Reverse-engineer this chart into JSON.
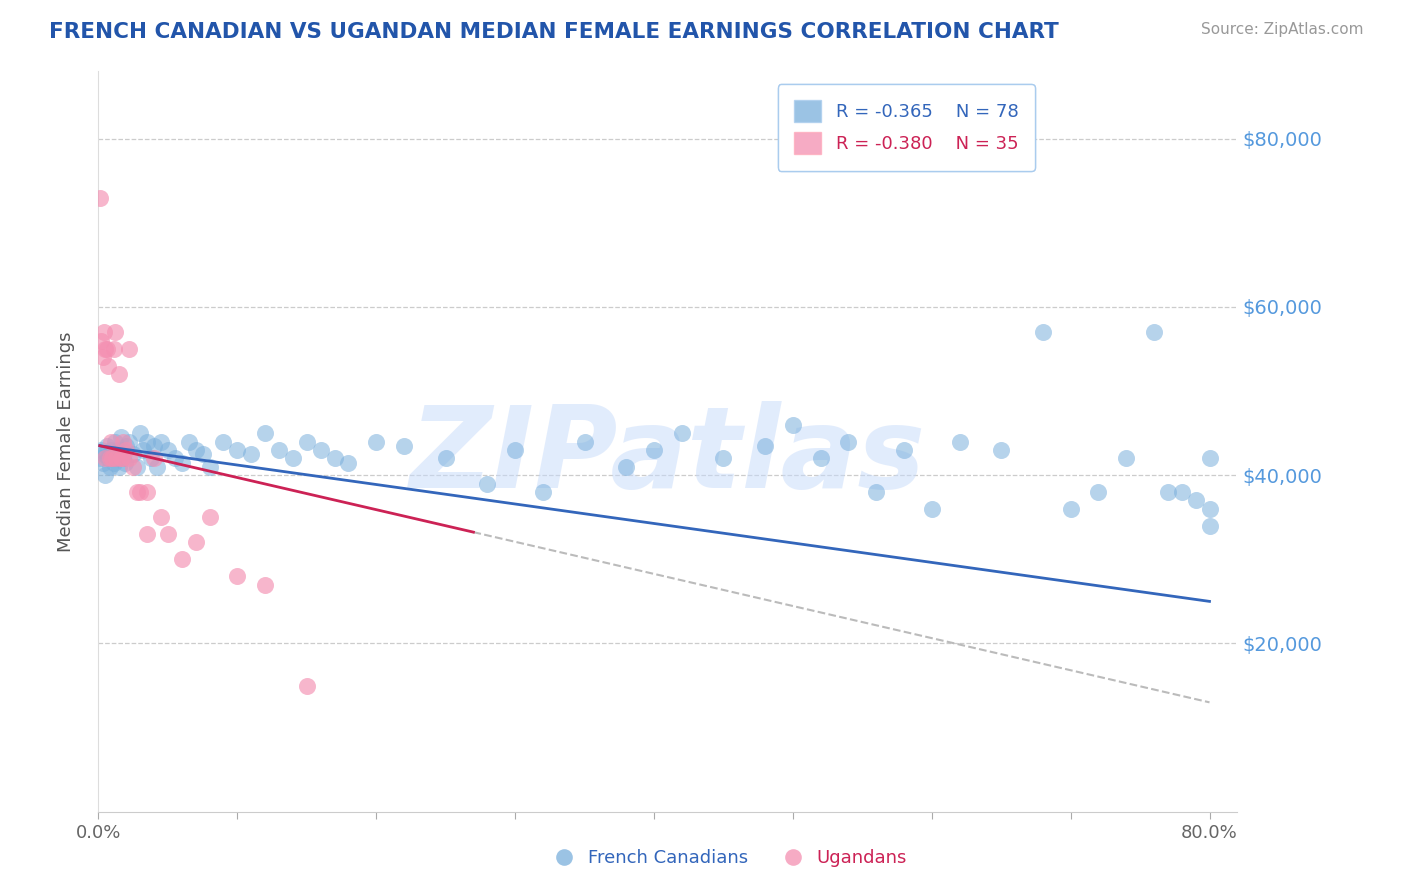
{
  "title": "FRENCH CANADIAN VS UGANDAN MEDIAN FEMALE EARNINGS CORRELATION CHART",
  "source": "Source: ZipAtlas.com",
  "ylabel": "Median Female Earnings",
  "yticks": [
    20000,
    40000,
    60000,
    80000
  ],
  "ytick_labels": [
    "$20,000",
    "$40,000",
    "$60,000",
    "$80,000"
  ],
  "legend_r1": "R = -0.365",
  "legend_n1": "N = 78",
  "legend_r2": "R = -0.380",
  "legend_n2": "N = 35",
  "blue_color": "#7AAFDC",
  "pink_color": "#F48FB1",
  "blue_line_color": "#3366BB",
  "pink_line_color": "#CC2255",
  "watermark": "ZIPatlas",
  "background_color": "#FFFFFF",
  "french_x": [
    0.001,
    0.002,
    0.003,
    0.004,
    0.005,
    0.006,
    0.007,
    0.008,
    0.009,
    0.01,
    0.011,
    0.012,
    0.013,
    0.014,
    0.015,
    0.016,
    0.017,
    0.018,
    0.019,
    0.02,
    0.022,
    0.025,
    0.028,
    0.03,
    0.032,
    0.035,
    0.038,
    0.04,
    0.042,
    0.045,
    0.05,
    0.055,
    0.06,
    0.065,
    0.07,
    0.075,
    0.08,
    0.09,
    0.1,
    0.11,
    0.12,
    0.13,
    0.14,
    0.15,
    0.16,
    0.17,
    0.18,
    0.2,
    0.22,
    0.25,
    0.28,
    0.3,
    0.32,
    0.35,
    0.38,
    0.4,
    0.42,
    0.45,
    0.48,
    0.5,
    0.52,
    0.54,
    0.56,
    0.58,
    0.6,
    0.62,
    0.65,
    0.68,
    0.7,
    0.72,
    0.74,
    0.76,
    0.78,
    0.8,
    0.8,
    0.8,
    0.79,
    0.77
  ],
  "french_y": [
    42000,
    43000,
    41500,
    42500,
    40000,
    43500,
    42000,
    41000,
    43000,
    42500,
    41500,
    44000,
    42000,
    43000,
    41000,
    44500,
    43000,
    42000,
    41500,
    43500,
    44000,
    42500,
    41000,
    45000,
    43000,
    44000,
    42000,
    43500,
    41000,
    44000,
    43000,
    42000,
    41500,
    44000,
    43000,
    42500,
    41000,
    44000,
    43000,
    42500,
    45000,
    43000,
    42000,
    44000,
    43000,
    42000,
    41500,
    44000,
    43500,
    42000,
    39000,
    43000,
    38000,
    44000,
    41000,
    43000,
    45000,
    42000,
    43500,
    46000,
    42000,
    44000,
    38000,
    43000,
    36000,
    44000,
    43000,
    57000,
    36000,
    38000,
    42000,
    57000,
    38000,
    34000,
    36000,
    42000,
    37000,
    38000
  ],
  "ugandan_x": [
    0.001,
    0.002,
    0.003,
    0.004,
    0.005,
    0.005,
    0.006,
    0.007,
    0.008,
    0.009,
    0.01,
    0.011,
    0.012,
    0.013,
    0.015,
    0.017,
    0.02,
    0.022,
    0.025,
    0.03,
    0.035,
    0.04,
    0.045,
    0.05,
    0.06,
    0.07,
    0.08,
    0.1,
    0.12,
    0.15,
    0.016,
    0.018,
    0.022,
    0.028,
    0.035
  ],
  "ugandan_y": [
    73000,
    56000,
    54000,
    57000,
    55000,
    42000,
    55000,
    53000,
    42000,
    44000,
    42000,
    55000,
    57000,
    42000,
    52000,
    42000,
    43000,
    55000,
    41000,
    38000,
    38000,
    42000,
    35000,
    33000,
    30000,
    32000,
    35000,
    28000,
    27000,
    15000,
    42000,
    44000,
    42000,
    38000,
    33000
  ],
  "xlim": [
    0.0,
    0.82
  ],
  "ylim": [
    0,
    88000
  ],
  "blue_line_x": [
    0.001,
    0.8
  ],
  "blue_line_y": [
    43500,
    25000
  ],
  "pink_line_x0": 0.001,
  "pink_line_x1": 0.27,
  "pink_line_x2": 0.8,
  "pink_line_y0": 43500,
  "pink_line_y1": 13000
}
